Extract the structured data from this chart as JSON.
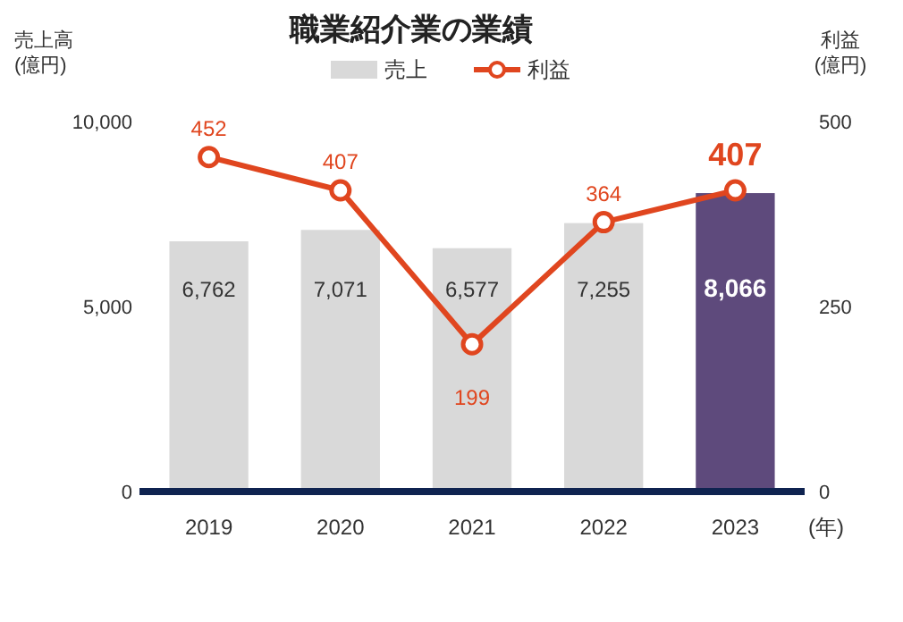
{
  "chart_data": {
    "type": "bar",
    "title": "職業紹介業の業績",
    "ylabel": "売上高\n(億円)",
    "y2label": "利益\n(億円)",
    "xlabel": "(年)",
    "categories": [
      "2019",
      "2020",
      "2021",
      "2022",
      "2023"
    ],
    "ylim": [
      0,
      10000
    ],
    "yticks": [
      0,
      {
        "value": 5000,
        "label": "5,000"
      },
      {
        "value": 10000,
        "label": "10,000"
      }
    ],
    "y2lim": [
      0,
      500
    ],
    "y2ticks": [
      0,
      250,
      500
    ],
    "legend": "top",
    "marker": "circle",
    "grid": false,
    "series": [
      {
        "name": "売上",
        "color": "#d9d9d9",
        "colors": [
          "#d9d9d9",
          "#d9d9d9",
          "#d9d9d9",
          "#d9d9d9",
          "#5e4a7c"
        ],
        "values": [
          6762,
          7071,
          6577,
          7255,
          8066
        ],
        "value_labels": [
          "6,762",
          "7,071",
          "6,577",
          "7,255",
          "8,066"
        ]
      },
      {
        "name": "利益",
        "type": "line",
        "axis": "y2",
        "color": "#e0461f",
        "values": [
          452,
          407,
          199,
          364,
          407
        ],
        "value_labels": [
          "452",
          "407",
          "199",
          "364",
          "407"
        ]
      }
    ]
  }
}
